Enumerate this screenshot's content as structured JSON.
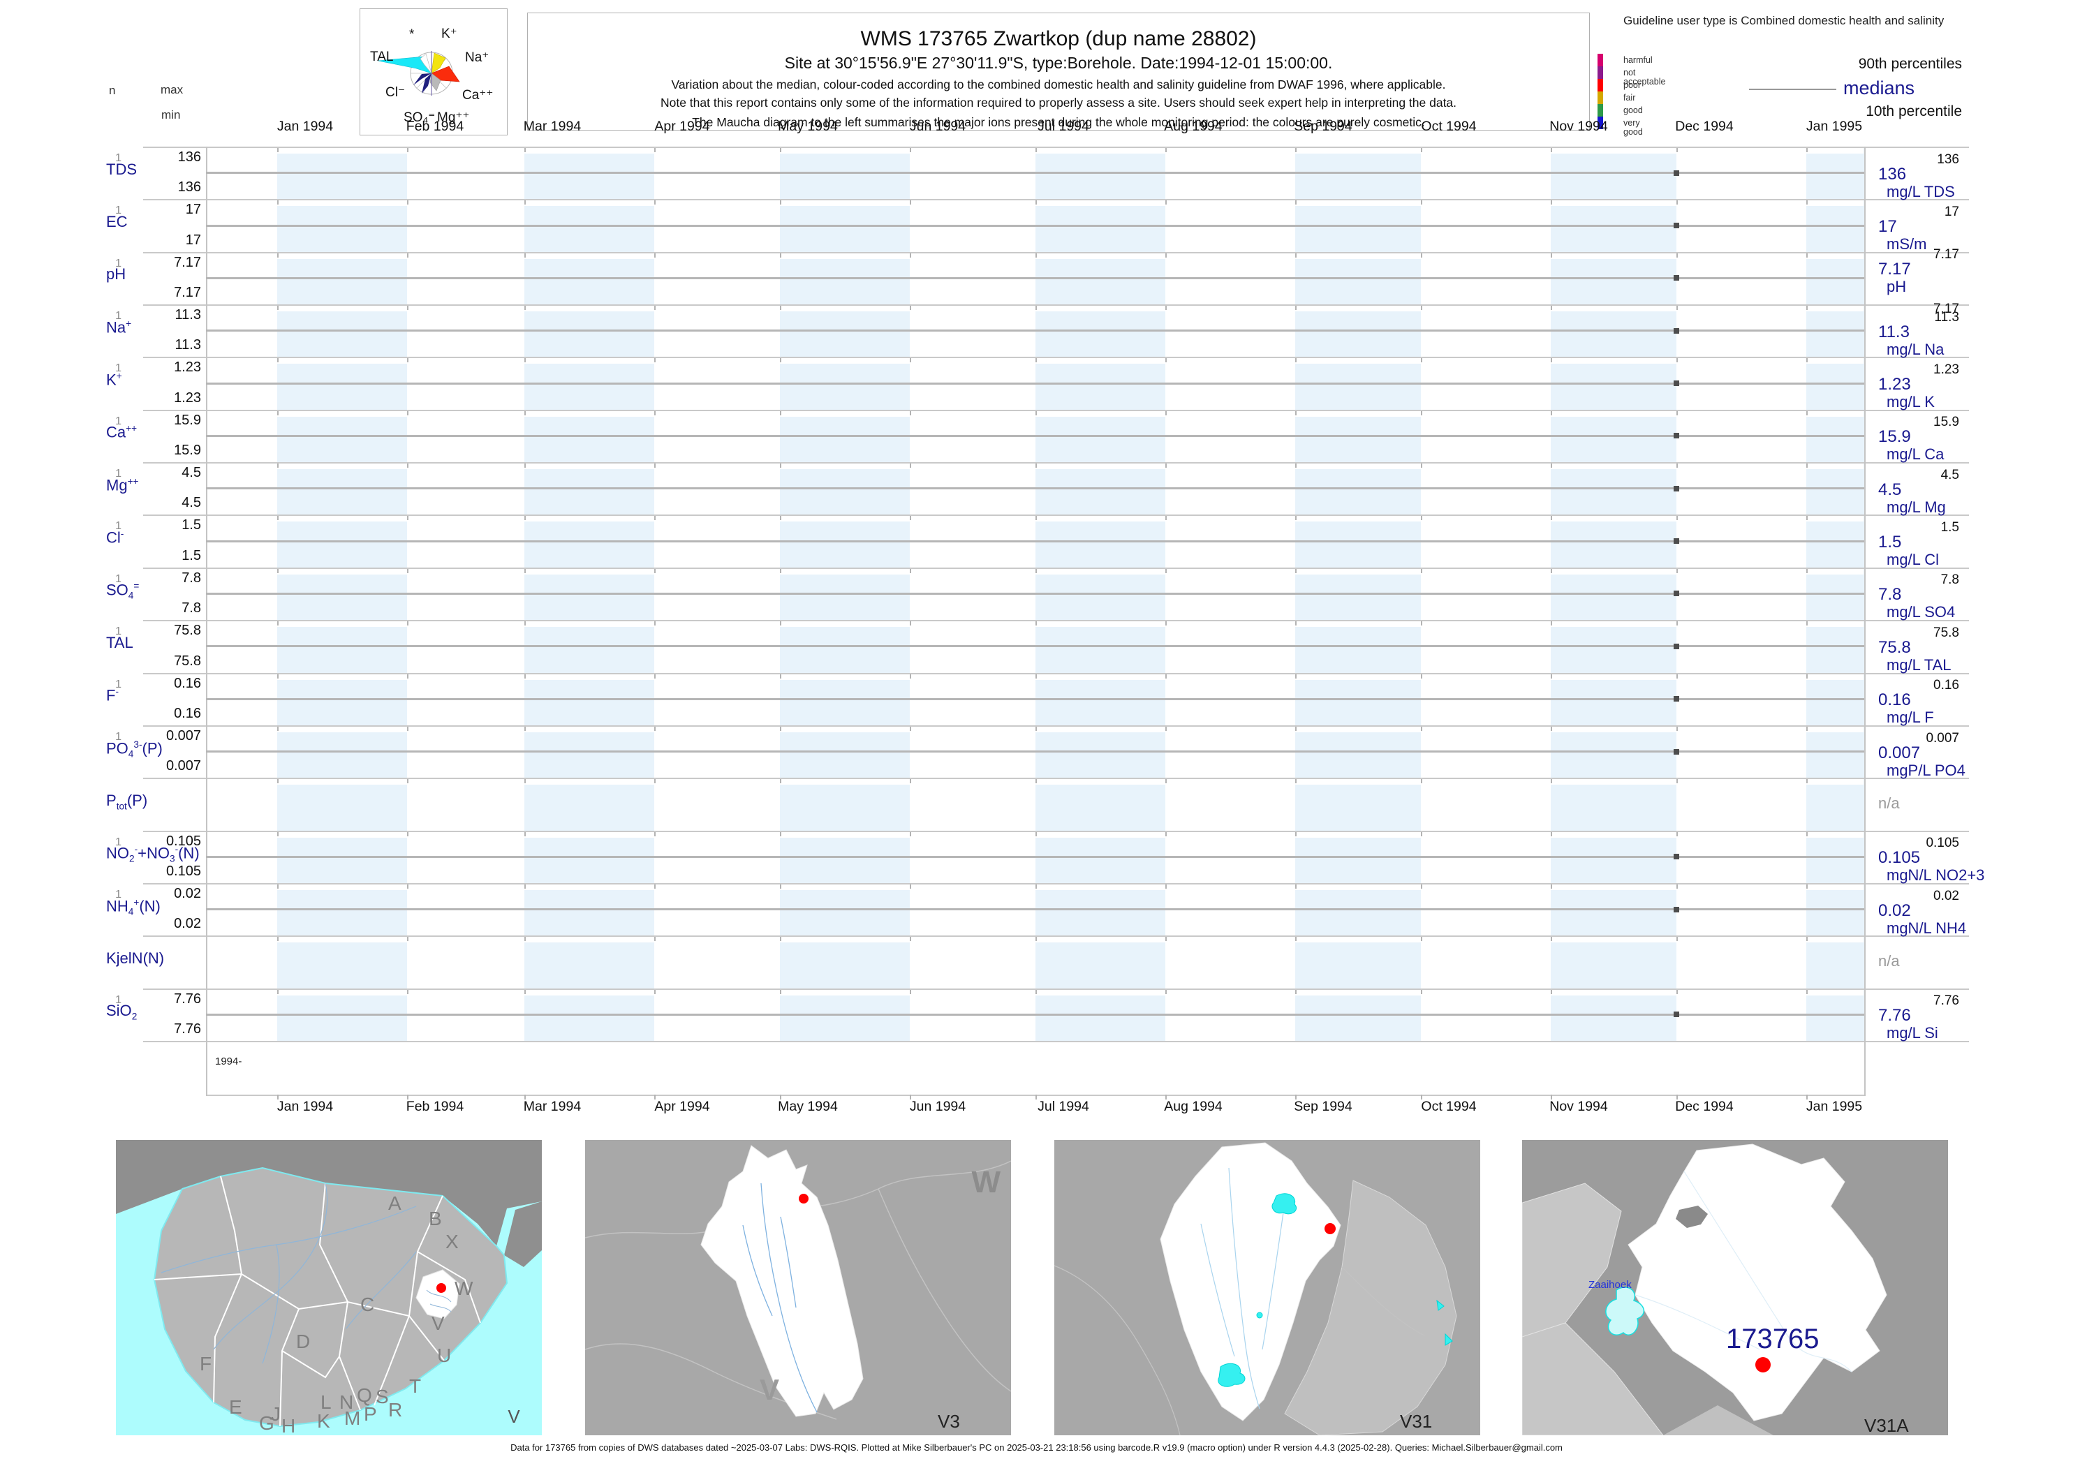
{
  "page": {
    "title": "WMS 173765  Zwartkop (dup name 28802)",
    "site_line": "Site at 30°15'56.9\"E 27°30'11.9\"S, type:Borehole. Date:1994-12-01 15:00:00.",
    "note_1": "Variation about the median,  colour-coded according to the combined domestic health and salinity guideline from DWAF 1996, where applicable.",
    "note_2": "Note that this report contains only some of the information required to properly assess a site. Users should seek expert help in interpreting the data.",
    "note_3": "The Maucha diagram to the left summarises the major ions present during the whole monitoring period: the colours are purely cosmetic.",
    "guideline_note": "Guideline user type is Combined domestic health and salinity",
    "footer": "Data for 173765 from copies of DWS databases dated ~2025-03-07 Labs: DWS-RQIS. Plotted at Mike Silberbauer's PC on 2025-03-21 23:18:56 using barcode.R v19.9 (macro option) under R version 4.4.3 (2025-02-28). Queries: Michael.Silberbauer@gmail.com"
  },
  "columns": {
    "n": "n",
    "max": "max",
    "min": "min"
  },
  "maucha": {
    "labels": [
      "*",
      "K⁺",
      "Na⁺",
      "Ca⁺⁺",
      "Mg⁺⁺",
      "SO₄⁼",
      "Cl⁻",
      "TAL"
    ]
  },
  "legend": {
    "quality": [
      {
        "label": "harmful",
        "color": "#d6006e"
      },
      {
        "label": "not acceptable",
        "color": "#8c1a8c"
      },
      {
        "label": "poor",
        "color": "#ff0000"
      },
      {
        "label": "fair",
        "color": "#d4a800"
      },
      {
        "label": "good",
        "color": "#2d9a48"
      },
      {
        "label": "very good",
        "color": "#1515d0"
      }
    ],
    "p90_label": "90th percentiles",
    "median_label": "medians",
    "p10_label": "10th percentile"
  },
  "axis": {
    "months": [
      "Jan 1994",
      "Feb 1994",
      "Mar 1994",
      "Apr 1994",
      "May 1994",
      "Jun 1994",
      "Jul 1994",
      "Aug 1994",
      "Sep 1994",
      "Oct 1994",
      "Nov 1994",
      "Dec 1994",
      "Jan 1995"
    ],
    "year_left_label": "1994-"
  },
  "chart_data": {
    "type": "line",
    "title": "WMS 173765 Zwartkop (dup name 28802) - variation about the median per parameter",
    "x_axis_months": [
      "Jan 1994",
      "Feb 1994",
      "Mar 1994",
      "Apr 1994",
      "May 1994",
      "Jun 1994",
      "Jul 1994",
      "Aug 1994",
      "Sep 1994",
      "Oct 1994",
      "Nov 1994",
      "Dec 1994",
      "Jan 1995"
    ],
    "sample_dates": [
      "1994-12-01"
    ],
    "grid": "alternating monthly shaded bands",
    "legend_position": "top-right",
    "series": [
      {
        "param": "TDS",
        "formula_html": "TDS",
        "n": "1",
        "max": "136",
        "min": "136",
        "p90": "136",
        "median": "136",
        "p10": "136",
        "p10_shown": false,
        "unit": "mg/L TDS",
        "na": null,
        "points": [
          {
            "date": "1994-12-01",
            "value": 136
          }
        ]
      },
      {
        "param": "EC",
        "formula_html": "EC",
        "n": "1",
        "max": "17",
        "min": "17",
        "p90": "17",
        "median": "17",
        "p10": "17",
        "p10_shown": false,
        "unit": "mS/m",
        "na": null,
        "points": [
          {
            "date": "1994-12-01",
            "value": 17
          }
        ]
      },
      {
        "param": "pH",
        "formula_html": "pH",
        "n": "1",
        "max": "7.17",
        "min": "7.17",
        "p90": "7.17",
        "median": "7.17",
        "p10": "7.17",
        "p10_shown": true,
        "unit": "pH",
        "na": null,
        "points": [
          {
            "date": "1994-12-01",
            "value": 7.17
          }
        ]
      },
      {
        "param": "Na",
        "formula_html": "Na<sup>+</sup>",
        "n": "1",
        "max": "11.3",
        "min": "11.3",
        "p90": "11.3",
        "median": "11.3",
        "p10": "11.3",
        "p10_shown": false,
        "unit": "mg/L Na",
        "na": null,
        "points": [
          {
            "date": "1994-12-01",
            "value": 11.3
          }
        ]
      },
      {
        "param": "K",
        "formula_html": "K<sup>+</sup>",
        "n": "1",
        "max": "1.23",
        "min": "1.23",
        "p90": "1.23",
        "median": "1.23",
        "p10": "1.23",
        "p10_shown": false,
        "unit": "mg/L K",
        "na": null,
        "points": [
          {
            "date": "1994-12-01",
            "value": 1.23
          }
        ]
      },
      {
        "param": "Ca",
        "formula_html": "Ca<sup>++</sup>",
        "n": "1",
        "max": "15.9",
        "min": "15.9",
        "p90": "15.9",
        "median": "15.9",
        "p10": "15.9",
        "p10_shown": false,
        "unit": "mg/L Ca",
        "na": null,
        "points": [
          {
            "date": "1994-12-01",
            "value": 15.9
          }
        ]
      },
      {
        "param": "Mg",
        "formula_html": "Mg<sup>++</sup>",
        "n": "1",
        "max": "4.5",
        "min": "4.5",
        "p90": "4.5",
        "median": "4.5",
        "p10": "4.5",
        "p10_shown": false,
        "unit": "mg/L Mg",
        "na": null,
        "points": [
          {
            "date": "1994-12-01",
            "value": 4.5
          }
        ]
      },
      {
        "param": "Cl",
        "formula_html": "Cl<sup>-</sup>",
        "n": "1",
        "max": "1.5",
        "min": "1.5",
        "p90": "1.5",
        "median": "1.5",
        "p10": "1.5",
        "p10_shown": false,
        "unit": "mg/L Cl",
        "na": null,
        "points": [
          {
            "date": "1994-12-01",
            "value": 1.5
          }
        ]
      },
      {
        "param": "SO4",
        "formula_html": "SO<sub>4</sub><sup>=</sup>",
        "n": "1",
        "max": "7.8",
        "min": "7.8",
        "p90": "7.8",
        "median": "7.8",
        "p10": "7.8",
        "p10_shown": false,
        "unit": "mg/L SO4",
        "na": null,
        "points": [
          {
            "date": "1994-12-01",
            "value": 7.8
          }
        ]
      },
      {
        "param": "TAL",
        "formula_html": "TAL",
        "n": "1",
        "max": "75.8",
        "min": "75.8",
        "p90": "75.8",
        "median": "75.8",
        "p10": "75.8",
        "p10_shown": false,
        "unit": "mg/L TAL",
        "na": null,
        "points": [
          {
            "date": "1994-12-01",
            "value": 75.8
          }
        ]
      },
      {
        "param": "F",
        "formula_html": "F<sup>-</sup>",
        "n": "1",
        "max": "0.16",
        "min": "0.16",
        "p90": "0.16",
        "median": "0.16",
        "p10": "0.16",
        "p10_shown": false,
        "unit": "mg/L F",
        "na": null,
        "points": [
          {
            "date": "1994-12-01",
            "value": 0.16
          }
        ]
      },
      {
        "param": "PO4",
        "formula_html": "PO<sub>4</sub><sup>3-</sup>(P)",
        "n": "1",
        "max": "0.007",
        "min": "0.007",
        "p90": "0.007",
        "median": "0.007",
        "p10": "0.007",
        "p10_shown": false,
        "unit": "mgP/L PO4",
        "na": null,
        "points": [
          {
            "date": "1994-12-01",
            "value": 0.007
          }
        ]
      },
      {
        "param": "Ptot",
        "formula_html": "P<sub>tot</sub>(P)",
        "n": null,
        "max": null,
        "min": null,
        "p90": null,
        "median": null,
        "p10": null,
        "p10_shown": false,
        "unit": null,
        "na": "n/a",
        "points": []
      },
      {
        "param": "NO2+NO3",
        "formula_html": "NO<sub>2</sub><sup>-</sup>+NO<sub>3</sub><sup>-</sup>(N)",
        "n": "1",
        "max": "0.105",
        "min": "0.105",
        "p90": "0.105",
        "median": "0.105",
        "p10": "0.105",
        "p10_shown": false,
        "unit": "mgN/L NO2+3",
        "na": null,
        "points": [
          {
            "date": "1994-12-01",
            "value": 0.105
          }
        ]
      },
      {
        "param": "NH4",
        "formula_html": "NH<sub>4</sub><sup>+</sup>(N)",
        "n": "1",
        "max": "0.02",
        "min": "0.02",
        "p90": "0.02",
        "median": "0.02",
        "p10": "0.02",
        "p10_shown": false,
        "unit": "mgN/L NH4",
        "na": null,
        "points": [
          {
            "date": "1994-12-01",
            "value": 0.02
          }
        ]
      },
      {
        "param": "KjelN",
        "formula_html": "KjelN(N)",
        "n": null,
        "max": null,
        "min": null,
        "p90": null,
        "median": null,
        "p10": null,
        "p10_shown": false,
        "unit": null,
        "na": "n/a",
        "points": []
      },
      {
        "param": "SiO2",
        "formula_html": "SiO<sub>2</sub>",
        "n": "1",
        "max": "7.76",
        "min": "7.76",
        "p90": "7.76",
        "median": "7.76",
        "p10": "7.76",
        "p10_shown": false,
        "unit": "mg/L Si",
        "na": null,
        "points": [
          {
            "date": "1994-12-01",
            "value": 7.76
          }
        ]
      }
    ]
  },
  "maps": [
    {
      "panel_label": "V",
      "region_letters": [
        "A",
        "B",
        "X",
        "C",
        "W",
        "V",
        "U",
        "D",
        "F",
        "T",
        "E",
        "Q",
        "S",
        "R",
        "L",
        "N",
        "P",
        "M",
        "J",
        "K",
        "G",
        "H"
      ],
      "site_marker": true
    },
    {
      "panel_label": "V3",
      "context_letters": [
        "W",
        "V"
      ],
      "site_marker": true
    },
    {
      "panel_label": "V31",
      "site_marker": true
    },
    {
      "panel_label": "V31A",
      "site_label": "173765",
      "feature_label": "Zaaihoek",
      "site_marker": true
    }
  ],
  "colors": {
    "accent_navy": "#1a1a8f",
    "band_blue": "#e8f3fb",
    "point_gray": "#4d4d4d",
    "site_red": "#ff0000",
    "ocean_cyan": "#adfcfd"
  }
}
